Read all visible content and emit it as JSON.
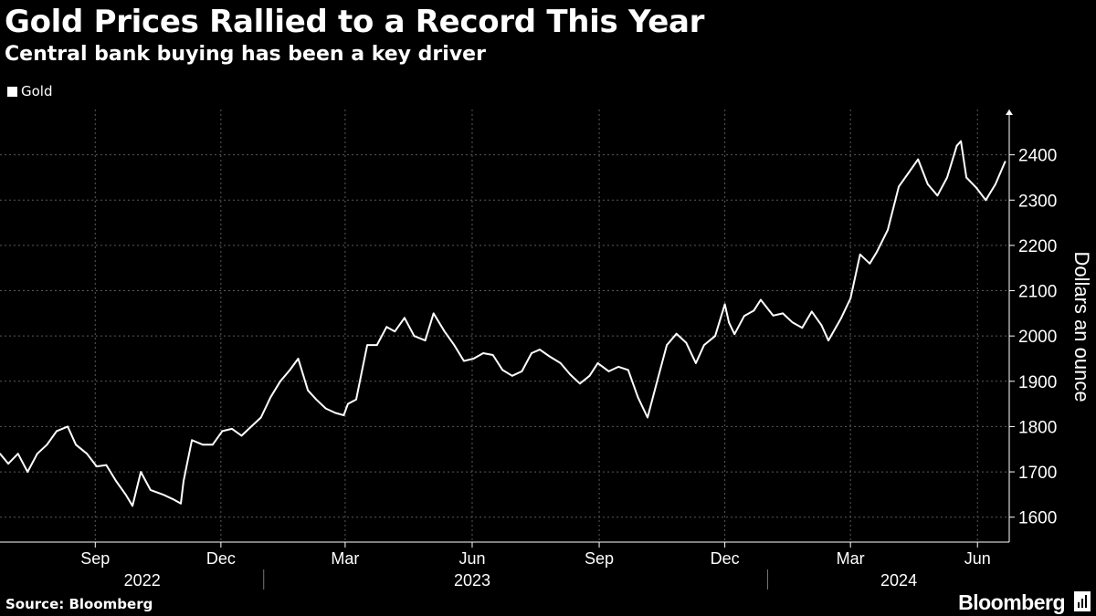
{
  "header": {
    "title": "Gold Prices Rallied to a Record This Year",
    "subtitle": "Central bank buying has been a key driver"
  },
  "legend": {
    "label": "Gold",
    "color": "#ffffff"
  },
  "footer": {
    "source": "Source: Bloomberg",
    "brand": "Bloomberg",
    "brand_icon": "bloomberg-chart-icon"
  },
  "chart_data": {
    "type": "line",
    "title": "Gold Prices Rallied to a Record This Year",
    "subtitle": "Central bank buying has been a key driver",
    "ylabel": "Dollars an ounce",
    "xlabel": "",
    "ylim": [
      1545,
      2500
    ],
    "xlim": [
      "2022-06-24",
      "2024-06-24"
    ],
    "y_ticks": [
      1600,
      1700,
      1800,
      1900,
      2000,
      2100,
      2200,
      2300,
      2400
    ],
    "x_ticks": [
      {
        "label": "Sep",
        "date": "2022-09-01"
      },
      {
        "label": "Dec",
        "date": "2022-12-01"
      },
      {
        "label": "Mar",
        "date": "2023-03-01"
      },
      {
        "label": "Jun",
        "date": "2023-06-01"
      },
      {
        "label": "Sep",
        "date": "2023-09-01"
      },
      {
        "label": "Dec",
        "date": "2023-12-01"
      },
      {
        "label": "Mar",
        "date": "2024-03-01"
      },
      {
        "label": "Jun",
        "date": "2024-06-01"
      }
    ],
    "year_labels": [
      {
        "label": "2022",
        "center": "2022-10-05"
      },
      {
        "label": "2023",
        "center": "2023-06-01"
      },
      {
        "label": "2024",
        "center": "2024-04-05"
      }
    ],
    "year_boundaries": [
      "2023-01-01",
      "2024-01-01"
    ],
    "grid": true,
    "legend_position": "top-left",
    "series": [
      {
        "name": "Gold",
        "color": "#ffffff",
        "x": [
          "2022-06-24",
          "2022-06-30",
          "2022-07-07",
          "2022-07-14",
          "2022-07-21",
          "2022-07-28",
          "2022-08-04",
          "2022-08-12",
          "2022-08-18",
          "2022-08-26",
          "2022-09-02",
          "2022-09-09",
          "2022-09-16",
          "2022-09-23",
          "2022-09-28",
          "2022-10-04",
          "2022-10-11",
          "2022-10-20",
          "2022-10-27",
          "2022-11-02",
          "2022-11-04",
          "2022-11-10",
          "2022-11-18",
          "2022-11-25",
          "2022-12-02",
          "2022-12-09",
          "2022-12-16",
          "2022-12-23",
          "2022-12-30",
          "2023-01-06",
          "2023-01-13",
          "2023-01-20",
          "2023-01-26",
          "2023-02-02",
          "2023-02-08",
          "2023-02-15",
          "2023-02-22",
          "2023-02-28",
          "2023-03-03",
          "2023-03-09",
          "2023-03-13",
          "2023-03-17",
          "2023-03-24",
          "2023-03-31",
          "2023-04-06",
          "2023-04-13",
          "2023-04-20",
          "2023-04-28",
          "2023-05-04",
          "2023-05-12",
          "2023-05-19",
          "2023-05-26",
          "2023-06-02",
          "2023-06-09",
          "2023-06-16",
          "2023-06-23",
          "2023-06-30",
          "2023-07-07",
          "2023-07-14",
          "2023-07-20",
          "2023-07-27",
          "2023-08-04",
          "2023-08-11",
          "2023-08-18",
          "2023-08-25",
          "2023-08-31",
          "2023-09-08",
          "2023-09-15",
          "2023-09-22",
          "2023-09-29",
          "2023-10-06",
          "2023-10-13",
          "2023-10-20",
          "2023-10-27",
          "2023-11-03",
          "2023-11-10",
          "2023-11-16",
          "2023-11-24",
          "2023-12-01",
          "2023-12-04",
          "2023-12-08",
          "2023-12-15",
          "2023-12-22",
          "2023-12-27",
          "2024-01-05",
          "2024-01-12",
          "2024-01-19",
          "2024-01-26",
          "2024-02-02",
          "2024-02-09",
          "2024-02-14",
          "2024-02-23",
          "2024-03-01",
          "2024-03-08",
          "2024-03-15",
          "2024-03-20",
          "2024-03-28",
          "2024-04-05",
          "2024-04-12",
          "2024-04-19",
          "2024-04-26",
          "2024-05-03",
          "2024-05-10",
          "2024-05-17",
          "2024-05-20",
          "2024-05-24",
          "2024-05-31",
          "2024-06-07",
          "2024-06-14",
          "2024-06-21"
        ],
        "values": [
          1740,
          1718,
          1740,
          1700,
          1740,
          1760,
          1790,
          1800,
          1760,
          1740,
          1712,
          1715,
          1680,
          1650,
          1625,
          1700,
          1660,
          1650,
          1640,
          1630,
          1680,
          1770,
          1760,
          1760,
          1790,
          1795,
          1780,
          1800,
          1820,
          1865,
          1900,
          1925,
          1950,
          1880,
          1860,
          1840,
          1830,
          1825,
          1850,
          1860,
          1920,
          1980,
          1980,
          2020,
          2010,
          2040,
          2000,
          1990,
          2050,
          2010,
          1980,
          1945,
          1950,
          1962,
          1958,
          1925,
          1912,
          1922,
          1962,
          1970,
          1955,
          1940,
          1915,
          1895,
          1912,
          1940,
          1922,
          1932,
          1925,
          1865,
          1820,
          1900,
          1980,
          2005,
          1985,
          1940,
          1980,
          2000,
          2070,
          2030,
          2004,
          2044,
          2056,
          2080,
          2045,
          2050,
          2030,
          2018,
          2054,
          2024,
          1990,
          2038,
          2083,
          2180,
          2160,
          2185,
          2234,
          2330,
          2360,
          2390,
          2335,
          2310,
          2350,
          2420,
          2430,
          2350,
          2328,
          2300,
          2335,
          2385
        ]
      }
    ]
  }
}
